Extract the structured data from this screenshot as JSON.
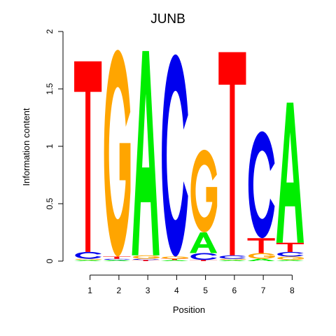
{
  "chart_data": {
    "type": "sequence-logo",
    "title": "JUNB",
    "xlabel": "Position",
    "ylabel": "Information content",
    "ylim": [
      0,
      2
    ],
    "yticks": [
      "0",
      "0.5",
      "1",
      "1.5",
      "2"
    ],
    "xticks": [
      "1",
      "2",
      "3",
      "4",
      "5",
      "6",
      "7",
      "8"
    ],
    "colors": {
      "A": "#00ee00",
      "C": "#0000ee",
      "G": "#ffa500",
      "T": "#ff0000"
    },
    "positions": [
      [
        {
          "base": "A",
          "bits": 0.01
        },
        {
          "base": "G",
          "bits": 0.01
        },
        {
          "base": "C",
          "bits": 0.06
        },
        {
          "base": "T",
          "bits": 1.66
        }
      ],
      [
        {
          "base": "A",
          "bits": 0.01
        },
        {
          "base": "C",
          "bits": 0.01
        },
        {
          "base": "T",
          "bits": 0.02
        },
        {
          "base": "G",
          "bits": 1.8
        }
      ],
      [
        {
          "base": "T",
          "bits": 0.01
        },
        {
          "base": "C",
          "bits": 0.01
        },
        {
          "base": "G",
          "bits": 0.03
        },
        {
          "base": "A",
          "bits": 1.78
        }
      ],
      [
        {
          "base": "A",
          "bits": 0.01
        },
        {
          "base": "T",
          "bits": 0.01
        },
        {
          "base": "G",
          "bits": 0.02
        },
        {
          "base": "C",
          "bits": 1.76
        }
      ],
      [
        {
          "base": "T",
          "bits": 0.01
        },
        {
          "base": "C",
          "bits": 0.06
        },
        {
          "base": "A",
          "bits": 0.18
        },
        {
          "base": "G",
          "bits": 0.72
        }
      ],
      [
        {
          "base": "A",
          "bits": 0.01
        },
        {
          "base": "G",
          "bits": 0.01
        },
        {
          "base": "C",
          "bits": 0.03
        },
        {
          "base": "T",
          "bits": 1.77
        }
      ],
      [
        {
          "base": "A",
          "bits": 0.02
        },
        {
          "base": "G",
          "bits": 0.05
        },
        {
          "base": "T",
          "bits": 0.13
        },
        {
          "base": "C",
          "bits": 0.93
        }
      ],
      [
        {
          "base": "A",
          "bits": 0.01
        },
        {
          "base": "G",
          "bits": 0.03
        },
        {
          "base": "C",
          "bits": 0.04
        },
        {
          "base": "T",
          "bits": 0.08
        },
        {
          "base": "A",
          "bits": 1.22
        }
      ]
    ]
  }
}
